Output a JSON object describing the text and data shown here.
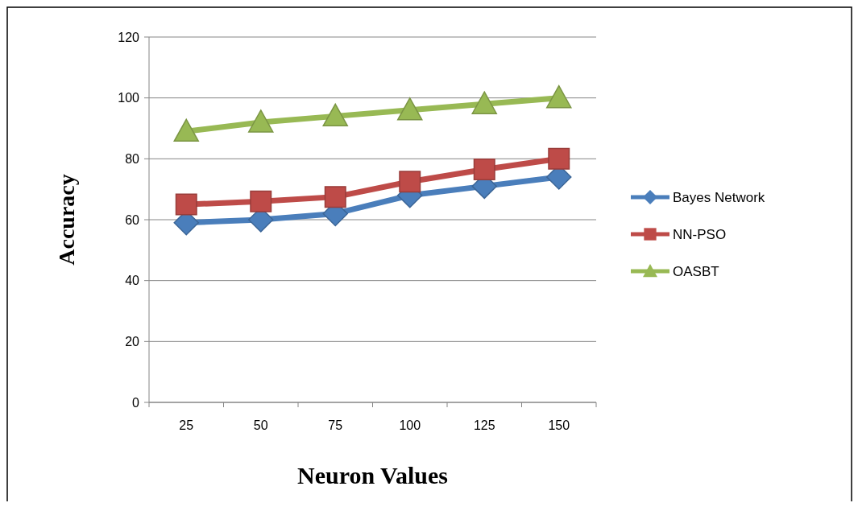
{
  "chart_data": {
    "type": "line",
    "xlabel": "Neuron Values",
    "ylabel": "Accuracy",
    "categories": [
      "25",
      "50",
      "75",
      "100",
      "125",
      "150"
    ],
    "ylim": [
      0,
      120
    ],
    "yticks": [
      0,
      20,
      40,
      60,
      80,
      100,
      120
    ],
    "grid": "y",
    "legend": "right",
    "line_style": "solid",
    "series": [
      {
        "name": "Bayes Network",
        "color": "#4a7ebb",
        "marker": "diamond",
        "values": [
          59,
          60,
          62,
          68,
          71,
          74
        ]
      },
      {
        "name": "NN-PSO",
        "color": "#be4b48",
        "marker": "square",
        "values": [
          65,
          66,
          67.5,
          72.5,
          76.5,
          80
        ]
      },
      {
        "name": "OASBT",
        "color": "#98b954",
        "marker": "triangle",
        "values": [
          89,
          92,
          94,
          96,
          98,
          100
        ]
      }
    ]
  }
}
